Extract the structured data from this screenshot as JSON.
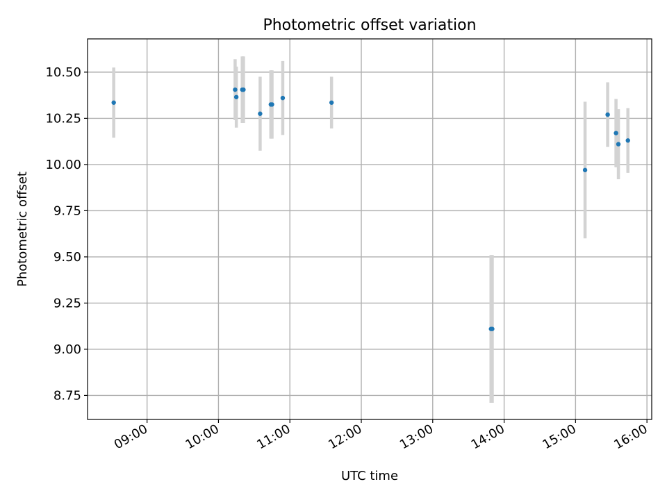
{
  "chart_data": {
    "type": "scatter",
    "title": "Photometric offset variation",
    "xlabel": "UTC time",
    "ylabel": "Photometric offset",
    "x_ticks": [
      "09:00",
      "10:00",
      "11:00",
      "12:00",
      "13:00",
      "14:00",
      "15:00",
      "16:00"
    ],
    "y_ticks": [
      "8.75",
      "9.00",
      "9.25",
      "9.50",
      "9.75",
      "10.00",
      "10.25",
      "10.50"
    ],
    "xlim": [
      "08:10",
      "16:04"
    ],
    "ylim": [
      8.62,
      10.68
    ],
    "grid": true,
    "point_color": "#1f77b4",
    "errorbar_color": "#d3d3d3",
    "series": [
      {
        "points": [
          {
            "x": "08:32",
            "y": 10.335,
            "err": 0.19
          },
          {
            "x": "10:14",
            "y": 10.405,
            "err": 0.165
          },
          {
            "x": "10:15",
            "y": 10.365,
            "err": 0.165
          },
          {
            "x": "10:20",
            "y": 10.405,
            "err": 0.18
          },
          {
            "x": "10:21",
            "y": 10.405,
            "err": 0.18
          },
          {
            "x": "10:35",
            "y": 10.275,
            "err": 0.2
          },
          {
            "x": "10:44",
            "y": 10.325,
            "err": 0.185
          },
          {
            "x": "10:45",
            "y": 10.325,
            "err": 0.185
          },
          {
            "x": "10:54",
            "y": 10.36,
            "err": 0.2
          },
          {
            "x": "11:35",
            "y": 10.335,
            "err": 0.14
          },
          {
            "x": "13:49",
            "y": 9.11,
            "err": 0.4
          },
          {
            "x": "13:50",
            "y": 9.11,
            "err": 0.4
          },
          {
            "x": "15:08",
            "y": 9.97,
            "err": 0.37
          },
          {
            "x": "15:27",
            "y": 10.27,
            "err": 0.175
          },
          {
            "x": "15:34",
            "y": 10.17,
            "err": 0.185
          },
          {
            "x": "15:36",
            "y": 10.11,
            "err": 0.19
          },
          {
            "x": "15:44",
            "y": 10.13,
            "err": 0.175
          }
        ]
      }
    ]
  }
}
